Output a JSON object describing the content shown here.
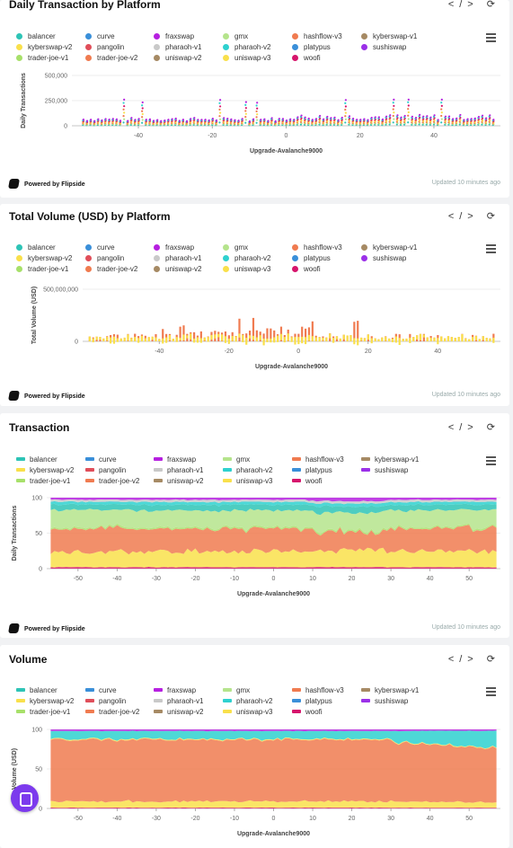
{
  "platforms": [
    "balancer",
    "curve",
    "fraxswap",
    "gmx",
    "hashflow-v3",
    "kyberswap-v1",
    "kyberswap-v2",
    "pangolin",
    "pharaoh-v1",
    "pharaoh-v2",
    "platypus",
    "sushiswap",
    "trader-joe-v1",
    "trader-joe-v2",
    "uniswap-v2",
    "uniswap-v3",
    "woofi"
  ],
  "colors": {
    "balancer": "#2ec4b6",
    "curve": "#3a8fd9",
    "fraxswap": "#b620e0",
    "gmx": "#b5e48c",
    "hashflow-v3": "#f07b50",
    "kyberswap-v1": "#a68a64",
    "kyberswap-v2": "#f9e04b",
    "pangolin": "#e04e5a",
    "pharaoh-v1": "#c9c9c9",
    "pharaoh-v2": "#2ed1cf",
    "platypus": "#3a8fd9",
    "sushiswap": "#9b30e8",
    "trader-joe-v1": "#a7e06a",
    "trader-joe-v2": "#f07b50",
    "uniswap-v2": "#a68a64",
    "uniswap-v3": "#f9e04b",
    "woofi": "#d6156c"
  },
  "footer": {
    "powered": "Powered by Flipside",
    "updated": "Updated 10 minutes ago"
  },
  "header_icons": "</> ⟳",
  "chart_data": [
    {
      "id": "c1",
      "type": "scatter",
      "title": "Daily Transaction by Platform",
      "xlabel": "Upgrade-Avalanche9000",
      "ylabel": "Daily Transactions",
      "xlim": [
        -58,
        58
      ],
      "ylim": [
        0,
        500000
      ],
      "xticks": [
        -40,
        -20,
        0,
        20,
        40
      ],
      "yticks": [
        0,
        250000,
        500000
      ],
      "ytick_labels": [
        "0",
        "250,000",
        "500,000"
      ],
      "pattern": "baseline+spiky",
      "peak": 260000
    },
    {
      "id": "c2",
      "type": "bar",
      "title": "Total Volume (USD) by Platform",
      "xlabel": "Upgrade-Avalanche9000",
      "ylabel": "Total Volume (USD)",
      "xlim": [
        -62,
        58
      ],
      "ylim": [
        0,
        500000000
      ],
      "xticks": [
        -40,
        -20,
        0,
        20,
        40
      ],
      "yticks": [
        0,
        500000000
      ],
      "ytick_labels": [
        "0",
        "500,000,000"
      ],
      "pattern": "spiky",
      "peak": 450000000
    },
    {
      "id": "c3",
      "type": "area",
      "title": "Transaction",
      "xlabel": "Upgrade-Avalanche9000",
      "ylabel": "Daily Transactions",
      "xlim": [
        -58,
        58
      ],
      "ylim": [
        0,
        100
      ],
      "xticks": [
        -50,
        -40,
        -30,
        -20,
        -10,
        0,
        10,
        20,
        30,
        40,
        50
      ],
      "yticks": [
        0,
        50,
        100
      ],
      "ytick_labels": [
        "0",
        "50",
        "100"
      ],
      "series": [
        {
          "name": "woofi",
          "share": 2
        },
        {
          "name": "uniswap-v3",
          "share": 22
        },
        {
          "name": "trader-joe-v2",
          "share": 32
        },
        {
          "name": "trader-joe-v1",
          "share": 2
        },
        {
          "name": "gmx",
          "share": 24
        },
        {
          "name": "balancer",
          "share": 8
        },
        {
          "name": "pharaoh-v2",
          "share": 4
        },
        {
          "name": "pharaoh-v1",
          "share": 3
        },
        {
          "name": "fraxswap",
          "share": 3
        }
      ]
    },
    {
      "id": "c4",
      "type": "area",
      "title": "Volume",
      "xlabel": "Upgrade-Avalanche9000",
      "ylabel": "Volume (USD)",
      "xlim": [
        -58,
        58
      ],
      "ylim": [
        0,
        100
      ],
      "xticks": [
        -50,
        -40,
        -30,
        -20,
        -10,
        0,
        10,
        20,
        30,
        40,
        50
      ],
      "yticks": [
        0,
        50,
        100
      ],
      "ytick_labels": [
        "0",
        "50",
        "100"
      ],
      "series": [
        {
          "name": "woofi",
          "share": 1
        },
        {
          "name": "uniswap-v3",
          "share": 8
        },
        {
          "name": "trader-joe-v2",
          "share": 78
        },
        {
          "name": "kyberswap-v2",
          "share": 1
        },
        {
          "name": "pharaoh-v2",
          "share": 10
        },
        {
          "name": "fraxswap",
          "share": 2
        }
      ]
    }
  ]
}
